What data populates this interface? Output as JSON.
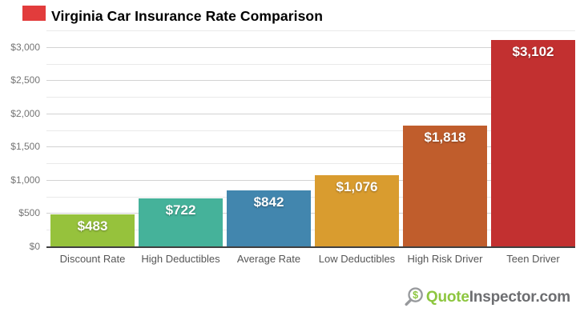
{
  "header": {
    "title": "Virginia Car Insurance Rate Comparison",
    "flag_color": "#e23c3c"
  },
  "chart_data": {
    "type": "bar",
    "title": "Virginia Car Insurance Rate Comparison",
    "categories": [
      "Discount Rate",
      "High Deductibles",
      "Average Rate",
      "Low Deductibles",
      "High Risk Driver",
      "Teen Driver"
    ],
    "values": [
      483,
      722,
      842,
      1076,
      1818,
      3102
    ],
    "value_labels": [
      "$483",
      "$722",
      "$842",
      "$1,076",
      "$1,818",
      "$3,102"
    ],
    "bar_colors": [
      "#96c23c",
      "#45b29a",
      "#4286ae",
      "#d99c2f",
      "#c05d2c",
      "#c23030"
    ],
    "xlabel": "",
    "ylabel": "",
    "ylim": [
      0,
      3250
    ],
    "yticks": [
      {
        "label": "$0",
        "value": 0
      },
      {
        "label": "$500",
        "value": 500
      },
      {
        "label": "$1,000",
        "value": 1000
      },
      {
        "label": "$1,500",
        "value": 1500
      },
      {
        "label": "$2,000",
        "value": 2000
      },
      {
        "label": "$2,500",
        "value": 2500
      },
      {
        "label": "$3,000",
        "value": 3000
      }
    ],
    "minor_tick_interval": 250,
    "major_tick_interval": 500,
    "grid": true,
    "legend": false,
    "text_colors": {
      "ytick": "#757575",
      "xtick": "#565656",
      "bar_value": "#ffffff"
    }
  },
  "footer": {
    "logo_icon": "magnifier-dollar-icon",
    "logo_part1": "Quote",
    "logo_part2": "Inspector.com",
    "logo_green": "#8dc63f",
    "logo_gray": "#6d6e71",
    "icon_stroke": "#97999c"
  }
}
